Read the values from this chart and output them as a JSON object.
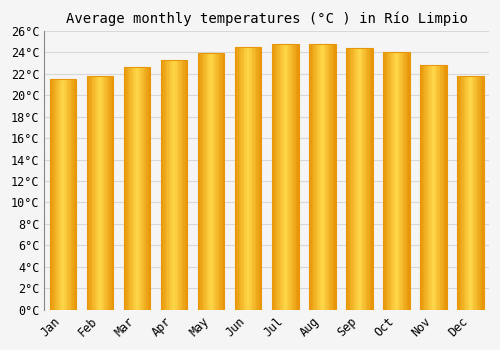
{
  "title": "Average monthly temperatures (°C ) in Río Limpio",
  "months": [
    "Jan",
    "Feb",
    "Mar",
    "Apr",
    "May",
    "Jun",
    "Jul",
    "Aug",
    "Sep",
    "Oct",
    "Nov",
    "Dec"
  ],
  "temperatures": [
    21.5,
    21.8,
    22.6,
    23.3,
    23.9,
    24.5,
    24.8,
    24.8,
    24.4,
    24.0,
    22.8,
    21.8
  ],
  "bar_color_edge": "#E8960A",
  "bar_color_center": "#FFD84A",
  "bar_color_mid": "#FDB92A",
  "ylim": [
    0,
    26
  ],
  "ytick_step": 2,
  "background_color": "#f5f5f5",
  "grid_color": "#d8d8d8",
  "title_fontsize": 10,
  "tick_fontsize": 8.5,
  "font_family": "monospace"
}
